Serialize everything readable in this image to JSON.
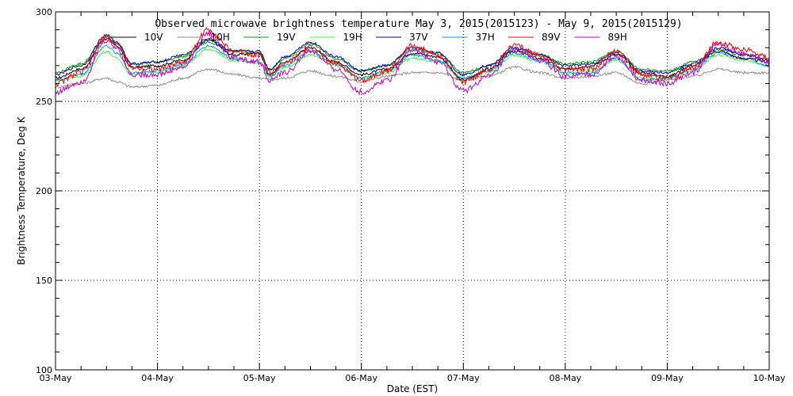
{
  "chart_data": {
    "type": "line",
    "title": "Observed microwave brightness temperature May  3, 2015(2015123) - May  9, 2015(2015129)",
    "xlabel": "Date (EST)",
    "ylabel": "Brightness Temperature, Deg K",
    "ylim": [
      100,
      300
    ],
    "xlim": [
      0,
      7
    ],
    "yticks": [
      100,
      150,
      200,
      250,
      300
    ],
    "ytick_labels": [
      "100",
      "150",
      "200",
      "250",
      "300"
    ],
    "xticks": [
      0,
      1,
      2,
      3,
      4,
      5,
      6,
      7
    ],
    "xtick_labels": [
      "03-May",
      "04-May",
      "05-May",
      "06-May",
      "07-May",
      "08-May",
      "09-May",
      "10-May"
    ],
    "grid": "dotted",
    "legend_placement": "top",
    "x": [
      0,
      0.25,
      0.5,
      0.6,
      0.75,
      1.0,
      1.25,
      1.5,
      1.75,
      2.0,
      2.1,
      2.25,
      2.5,
      2.75,
      3.0,
      3.25,
      3.5,
      3.75,
      4.0,
      4.25,
      4.5,
      4.75,
      5.0,
      5.25,
      5.5,
      5.75,
      6.0,
      6.25,
      6.5,
      6.75,
      7.0
    ],
    "series": [
      {
        "name": "10V",
        "color": "#000000",
        "values": [
          263,
          268,
          285,
          281,
          269,
          270,
          273,
          284,
          276,
          277,
          265,
          272,
          280,
          272,
          265,
          268,
          277,
          275,
          262,
          268,
          278,
          274,
          268,
          270,
          276,
          266,
          264,
          270,
          278,
          274,
          272
        ]
      },
      {
        "name": "10H",
        "color": "#8c8c8c",
        "values": [
          258,
          260,
          263,
          261,
          258,
          259,
          263,
          268,
          265,
          263,
          262,
          263,
          267,
          264,
          261,
          264,
          266,
          266,
          262,
          264,
          269,
          266,
          263,
          264,
          266,
          260,
          262,
          264,
          268,
          266,
          266
        ]
      },
      {
        "name": "19V",
        "color": "#00a000",
        "values": [
          266,
          271,
          286,
          283,
          271,
          272,
          275,
          283,
          278,
          277,
          268,
          274,
          282,
          274,
          267,
          270,
          279,
          277,
          266,
          270,
          279,
          276,
          271,
          272,
          278,
          268,
          267,
          272,
          279,
          276,
          274
        ]
      },
      {
        "name": "19H",
        "color": "#40ff40",
        "values": [
          262,
          264,
          278,
          274,
          265,
          266,
          270,
          279,
          273,
          271,
          264,
          269,
          276,
          270,
          263,
          266,
          274,
          272,
          263,
          266,
          276,
          272,
          266,
          267,
          273,
          263,
          263,
          267,
          276,
          273,
          270
        ]
      },
      {
        "name": "37V",
        "color": "#0000b4",
        "values": [
          265,
          270,
          287,
          283,
          271,
          272,
          276,
          285,
          278,
          278,
          268,
          275,
          283,
          275,
          267,
          270,
          280,
          277,
          265,
          270,
          280,
          276,
          270,
          271,
          277,
          267,
          266,
          271,
          280,
          276,
          273
        ]
      },
      {
        "name": "37H",
        "color": "#0096ff",
        "values": [
          262,
          265,
          281,
          277,
          266,
          267,
          271,
          281,
          274,
          272,
          264,
          270,
          278,
          271,
          263,
          267,
          276,
          273,
          263,
          267,
          277,
          273,
          266,
          266,
          274,
          262,
          263,
          268,
          277,
          274,
          270
        ]
      },
      {
        "name": "89V",
        "color": "#ff0000",
        "values": [
          260,
          266,
          286,
          282,
          269,
          268,
          272,
          290,
          278,
          276,
          266,
          271,
          280,
          271,
          262,
          267,
          281,
          276,
          261,
          268,
          281,
          276,
          268,
          268,
          278,
          265,
          263,
          269,
          283,
          279,
          275
        ]
      },
      {
        "name": "89H",
        "color": "#c800c8",
        "values": [
          255,
          261,
          284,
          280,
          265,
          265,
          269,
          288,
          274,
          272,
          262,
          266,
          278,
          268,
          255,
          262,
          279,
          272,
          256,
          264,
          279,
          273,
          264,
          265,
          275,
          262,
          260,
          266,
          282,
          277,
          272
        ]
      }
    ]
  }
}
